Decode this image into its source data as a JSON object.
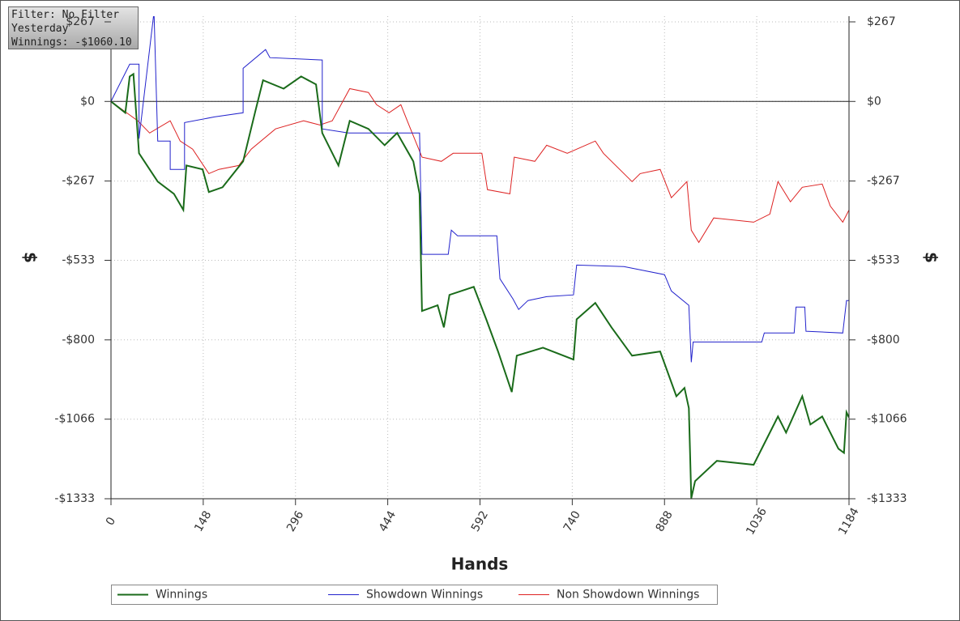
{
  "chart_data": {
    "type": "line",
    "annotations": [
      "Filter: No Filter",
      "Yesterday",
      "Winnings: -$1060.10"
    ],
    "x_label": "Hands",
    "y_label": "$",
    "y2_label": "$",
    "xlim": [
      0,
      1184
    ],
    "xticks": [
      0,
      148,
      296,
      444,
      592,
      740,
      888,
      1036,
      1184
    ],
    "ylim": [
      -1333,
      286
    ],
    "yticks": [
      {
        "value": 267,
        "label": "$267"
      },
      {
        "value": 0,
        "label": "$0"
      },
      {
        "value": -267,
        "label": "-$267"
      },
      {
        "value": -533,
        "label": "-$533"
      },
      {
        "value": -800,
        "label": "-$800"
      },
      {
        "value": -1066,
        "label": "-$1066"
      },
      {
        "value": -1333,
        "label": "-$1333"
      }
    ],
    "y2lim": [
      -1333,
      286
    ],
    "y2ticks": [
      {
        "value": 267,
        "label": "$267"
      },
      {
        "value": 0,
        "label": "$0"
      },
      {
        "value": -267,
        "label": "-$267"
      },
      {
        "value": -533,
        "label": "-$533"
      },
      {
        "value": -800,
        "label": "-$800"
      },
      {
        "value": -1066,
        "label": "-$1066"
      },
      {
        "value": -1333,
        "label": "-$1333"
      }
    ],
    "grid": true,
    "legend": "bottom",
    "series": [
      {
        "name": "Winnings",
        "color": "#1a6b1a",
        "x": [
          0,
          23,
          30,
          36,
          45,
          62,
          75,
          101,
          116,
          121,
          147,
          157,
          179,
          212,
          231,
          244,
          277,
          305,
          329,
          339,
          365,
          383,
          413,
          439,
          459,
          485,
          495,
          499,
          524,
          534,
          543,
          582,
          602,
          621,
          643,
          651,
          693,
          742,
          747,
          777,
          803,
          836,
          881,
          907,
          920,
          927,
          931,
          937,
          972,
          1031,
          1070,
          1083,
          1109,
          1122,
          1141,
          1167,
          1176,
          1180,
          1184
        ],
        "values": [
          0,
          -38,
          84,
          92,
          -174,
          -228,
          -269,
          -310,
          -364,
          -215,
          -228,
          -304,
          -288,
          -201,
          -38,
          71,
          43,
          84,
          57,
          -106,
          -215,
          -65,
          -92,
          -147,
          -106,
          -201,
          -310,
          -703,
          -684,
          -758,
          -649,
          -622,
          -731,
          -839,
          -975,
          -853,
          -826,
          -866,
          -731,
          -676,
          -758,
          -853,
          -839,
          -989,
          -961,
          -1029,
          -1331,
          -1274,
          -1206,
          -1219,
          -1057,
          -1111,
          -989,
          -1084,
          -1057,
          -1165,
          -1179,
          -1043,
          -1060
        ]
      },
      {
        "name": "Showdown Winnings",
        "color": "#2222cc",
        "x": [
          0,
          30,
          45,
          45,
          69,
          75,
          95,
          95,
          118,
          118,
          166,
          212,
          212,
          248,
          255,
          339,
          339,
          381,
          472,
          495,
          499,
          541,
          546,
          556,
          619,
          624,
          645,
          654,
          669,
          699,
          742,
          747,
          823,
          888,
          899,
          927,
          931,
          934,
          1044,
          1048,
          1096,
          1099,
          1113,
          1115,
          1174,
          1180,
          1184
        ],
        "values": [
          0,
          125,
          125,
          -125,
          300,
          -133,
          -133,
          -228,
          -228,
          -71,
          -52,
          -38,
          111,
          174,
          147,
          139,
          -92,
          -106,
          -106,
          -106,
          -513,
          -513,
          -432,
          -451,
          -451,
          -595,
          -663,
          -698,
          -668,
          -655,
          -649,
          -549,
          -554,
          -581,
          -636,
          -684,
          -875,
          -807,
          -807,
          -777,
          -777,
          -690,
          -690,
          -771,
          -777,
          -668,
          -668
        ]
      },
      {
        "name": "Non Showdown Winnings",
        "color": "#dd2222",
        "x": [
          0,
          43,
          62,
          95,
          111,
          131,
          157,
          173,
          205,
          225,
          264,
          309,
          335,
          355,
          383,
          413,
          426,
          446,
          465,
          478,
          499,
          530,
          549,
          595,
          604,
          640,
          647,
          680,
          699,
          732,
          777,
          790,
          836,
          849,
          881,
          899,
          924,
          931,
          943,
          967,
          1031,
          1057,
          1070,
          1090,
          1109,
          1141,
          1154,
          1174,
          1184
        ],
        "values": [
          0,
          -65,
          -106,
          -65,
          -133,
          -160,
          -242,
          -228,
          -215,
          -160,
          -92,
          -65,
          -79,
          -65,
          43,
          30,
          -11,
          -38,
          -11,
          -79,
          -187,
          -201,
          -174,
          -174,
          -296,
          -310,
          -187,
          -201,
          -147,
          -174,
          -133,
          -174,
          -269,
          -242,
          -228,
          -323,
          -269,
          -432,
          -473,
          -391,
          -405,
          -378,
          -269,
          -337,
          -288,
          -277,
          -351,
          -405,
          -364
        ]
      }
    ]
  }
}
